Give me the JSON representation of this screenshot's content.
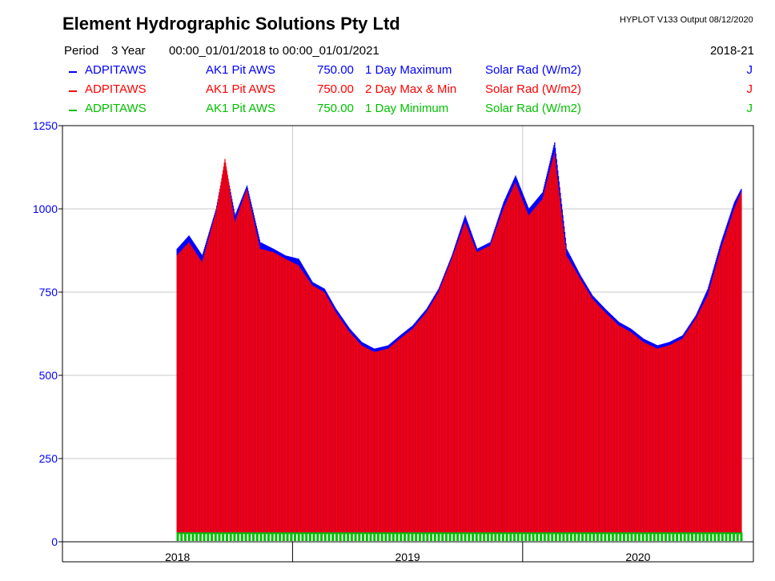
{
  "header": {
    "company": "Element Hydrographic Solutions Pty Ltd",
    "version": "HYPLOT V133  Output 08/12/2020",
    "period_label": "Period",
    "period_value": "3 Year",
    "period_range": "00:00_01/01/2018 to 00:00_01/01/2021",
    "period_years": "2018-21"
  },
  "legend": [
    {
      "site": "ADPITAWS",
      "name": "AK1 Pit AWS",
      "number": "750.00",
      "desc": "1 Day Maximum",
      "variable": "Solar Rad (W/m2)",
      "code": "J",
      "color": "#0000ff"
    },
    {
      "site": "ADPITAWS",
      "name": "AK1 Pit AWS",
      "number": "750.00",
      "desc": "2 Day Max & Min",
      "variable": "Solar Rad (W/m2)",
      "code": "J",
      "color": "#ff0000"
    },
    {
      "site": "ADPITAWS",
      "name": "AK1 Pit AWS",
      "number": "750.00",
      "desc": "1 Day Minimum",
      "variable": "Solar Rad (W/m2)",
      "code": "J",
      "color": "#00c000"
    }
  ],
  "chart_data": {
    "type": "bar",
    "x_start": "2018-01-01",
    "x_end": "2021-01-01",
    "y_ticks": [
      "0",
      "250",
      "500",
      "750",
      "1000",
      "1250"
    ],
    "ylim": [
      0,
      1250
    ],
    "x_labels": [
      "2018",
      "2019",
      "2020"
    ],
    "grid": true,
    "legend_placement": "top",
    "min_value": 28,
    "series": [
      {
        "name": "1 Day Maximum",
        "color": "#0000ff",
        "x": [
          "2018-07-01",
          "2018-07-20",
          "2018-08-10",
          "2018-09-01",
          "2018-09-15",
          "2018-10-01",
          "2018-10-20",
          "2018-11-10",
          "2018-12-01",
          "2018-12-20",
          "2019-01-10",
          "2019-02-01",
          "2019-02-20",
          "2019-03-10",
          "2019-04-01",
          "2019-04-20",
          "2019-05-10",
          "2019-06-01",
          "2019-06-20",
          "2019-07-10",
          "2019-08-01",
          "2019-08-20",
          "2019-09-10",
          "2019-10-01",
          "2019-10-20",
          "2019-11-10",
          "2019-12-01",
          "2019-12-20",
          "2020-01-10",
          "2020-02-01",
          "2020-02-20",
          "2020-03-10",
          "2020-04-01",
          "2020-04-20",
          "2020-05-10",
          "2020-06-01",
          "2020-06-20",
          "2020-07-10",
          "2020-08-01",
          "2020-08-20",
          "2020-09-10",
          "2020-10-01",
          "2020-10-20",
          "2020-11-10",
          "2020-12-01",
          "2020-12-12"
        ],
        "values": [
          880,
          920,
          860,
          1000,
          1140,
          980,
          1070,
          900,
          880,
          860,
          850,
          780,
          760,
          700,
          640,
          600,
          580,
          590,
          620,
          650,
          700,
          760,
          860,
          980,
          880,
          900,
          1020,
          1100,
          1000,
          1050,
          1200,
          880,
          800,
          740,
          700,
          660,
          640,
          610,
          590,
          600,
          620,
          680,
          760,
          900,
          1020,
          1060
        ]
      },
      {
        "name": "2 Day Max & Min",
        "color": "#ff0000",
        "x": [
          "2018-07-01",
          "2018-07-20",
          "2018-08-10",
          "2018-09-01",
          "2018-09-15",
          "2018-10-01",
          "2018-10-20",
          "2018-11-10",
          "2018-12-01",
          "2018-12-20",
          "2019-01-10",
          "2019-02-01",
          "2019-02-20",
          "2019-03-10",
          "2019-04-01",
          "2019-04-20",
          "2019-05-10",
          "2019-06-01",
          "2019-06-20",
          "2019-07-10",
          "2019-08-01",
          "2019-08-20",
          "2019-09-10",
          "2019-10-01",
          "2019-10-20",
          "2019-11-10",
          "2019-12-01",
          "2019-12-20",
          "2020-01-10",
          "2020-02-01",
          "2020-02-20",
          "2020-03-10",
          "2020-04-01",
          "2020-04-20",
          "2020-05-10",
          "2020-06-01",
          "2020-06-20",
          "2020-07-10",
          "2020-08-01",
          "2020-08-20",
          "2020-09-10",
          "2020-10-01",
          "2020-10-20",
          "2020-11-10",
          "2020-12-01",
          "2020-12-12"
        ],
        "values": [
          860,
          900,
          840,
          990,
          1150,
          960,
          1060,
          880,
          870,
          850,
          830,
          770,
          750,
          690,
          630,
          590,
          570,
          580,
          610,
          640,
          690,
          750,
          850,
          960,
          870,
          890,
          1000,
          1080,
          980,
          1030,
          1170,
          860,
          790,
          730,
          690,
          650,
          630,
          600,
          580,
          590,
          610,
          670,
          740,
          880,
          1000,
          1050
        ]
      },
      {
        "name": "1 Day Minimum",
        "color": "#00c000",
        "x": [
          "2018-07-01",
          "2019-01-01",
          "2019-07-01",
          "2020-01-01",
          "2020-07-01",
          "2020-12-12"
        ],
        "values": [
          0,
          0,
          0,
          0,
          0,
          0
        ]
      }
    ]
  }
}
